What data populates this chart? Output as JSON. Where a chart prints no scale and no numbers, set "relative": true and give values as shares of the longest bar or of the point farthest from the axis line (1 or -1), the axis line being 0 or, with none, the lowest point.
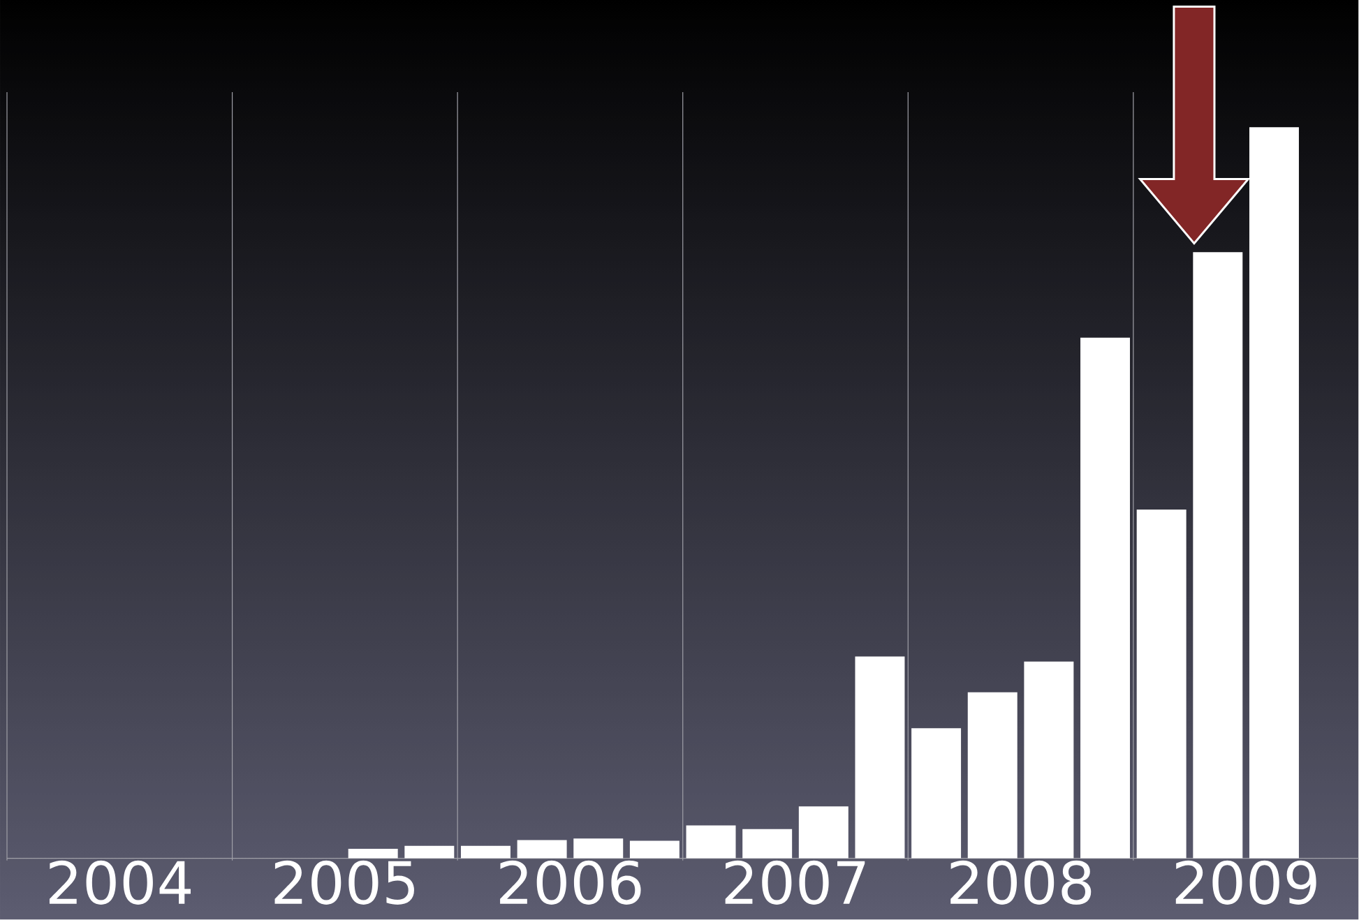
{
  "chart_data": {
    "type": "bar",
    "relative": true,
    "color": "#ffffff",
    "x": [
      2005.625,
      2005.875,
      2006.125,
      2006.375,
      2006.625,
      2006.875,
      2007.125,
      2007.375,
      2007.625,
      2007.875,
      2008.125,
      2008.375,
      2008.625,
      2008.875,
      2009.125,
      2009.375,
      2009.625
    ],
    "values": [
      0.013,
      0.017,
      0.017,
      0.025,
      0.027,
      0.024,
      0.045,
      0.04,
      0.071,
      0.276,
      0.178,
      0.227,
      0.269,
      0.712,
      0.477,
      0.829,
      1
    ],
    "xlim": [
      2004,
      2010
    ],
    "xticks": [
      {
        "value": 2004.5,
        "label": "2004"
      },
      {
        "value": 2005.5,
        "label": "2005"
      },
      {
        "value": 2006.5,
        "label": "2006"
      },
      {
        "value": 2007.5,
        "label": "2007"
      },
      {
        "value": 2008.5,
        "label": "2008"
      },
      {
        "value": 2009.5,
        "label": "2009"
      }
    ],
    "ref_lines": [
      {
        "axis": "x",
        "value": 2004,
        "color": "#a0a0a8"
      },
      {
        "axis": "x",
        "value": 2005,
        "color": "#a0a0a8"
      },
      {
        "axis": "x",
        "value": 2006,
        "color": "#a0a0a8"
      },
      {
        "axis": "x",
        "value": 2007,
        "color": "#a0a0a8"
      },
      {
        "axis": "x",
        "value": 2008,
        "color": "#a0a0a8"
      },
      {
        "axis": "x",
        "value": 2009,
        "color": "#a0a0a8"
      }
    ]
  }
}
